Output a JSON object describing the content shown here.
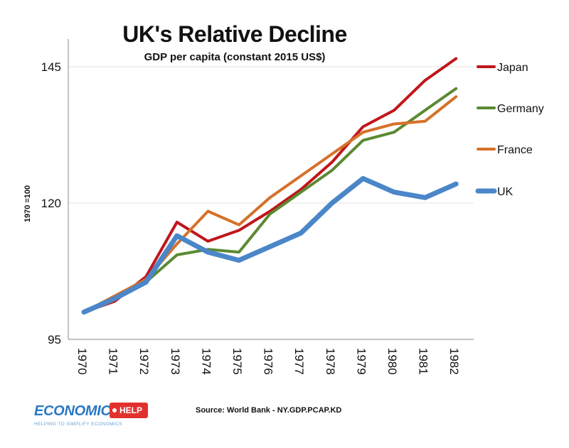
{
  "chart_data": {
    "type": "line",
    "title": "UK's Relative Decline",
    "subtitle": "GDP per capita (constant 2015 US$)",
    "xlabel": "",
    "ylabel": "1970 =100",
    "categories": [
      "1970",
      "1971",
      "1972",
      "1973",
      "1974",
      "1975",
      "1976",
      "1977",
      "1978",
      "1979",
      "1980",
      "1981",
      "1982"
    ],
    "ylim": [
      95,
      150
    ],
    "yticks": [
      95,
      120,
      145
    ],
    "series": [
      {
        "name": "Japan",
        "color": "#c0161b",
        "values": [
          100,
          102.0,
          106.5,
          116.5,
          113.0,
          115.0,
          118.5,
          122.5,
          127.5,
          134.0,
          137.0,
          142.5,
          146.5
        ]
      },
      {
        "name": "Germany",
        "color": "#5a8a32",
        "values": [
          100,
          102.5,
          105.5,
          110.5,
          111.5,
          111.0,
          118.0,
          122.0,
          126.0,
          131.5,
          133.0,
          137.0,
          141.0
        ]
      },
      {
        "name": "France",
        "color": "#d5712a",
        "values": [
          100,
          103.0,
          106.0,
          112.5,
          118.5,
          116.0,
          121.0,
          125.0,
          129.0,
          133.0,
          134.5,
          135.0,
          139.5
        ]
      },
      {
        "name": "UK",
        "color": "#4a86c8",
        "values": [
          100,
          102.5,
          105.5,
          114.0,
          111.0,
          109.5,
          112.0,
          114.5,
          120.0,
          124.5,
          122.0,
          121.0,
          123.5
        ]
      }
    ]
  },
  "source": "Source: World Bank - NY.GDP.PCAP.KD",
  "logo": {
    "brand": "ECONOMICS",
    "badge": "HELP",
    "tagline": "HELPING TO SIMPLIFY ECONOMICS"
  }
}
